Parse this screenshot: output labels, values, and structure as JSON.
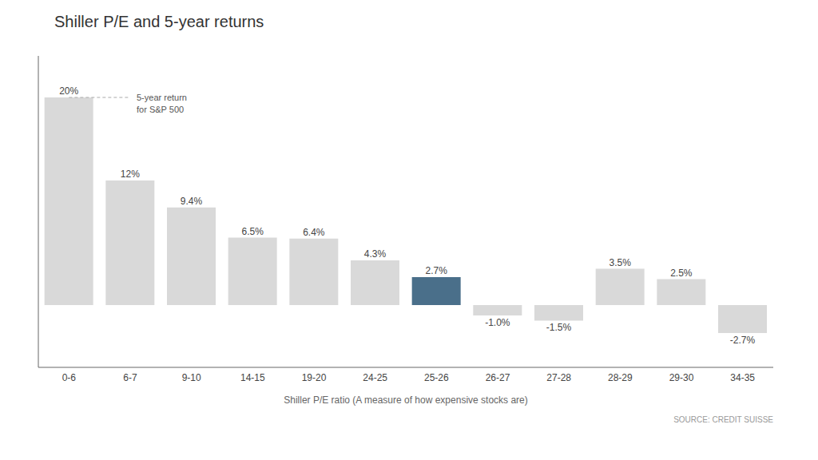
{
  "chart_data": {
    "type": "bar",
    "title": "Shiller P/E and 5-year returns",
    "categories": [
      "0-6",
      "6-7",
      "9-10",
      "14-15",
      "19-20",
      "24-25",
      "25-26",
      "26-27",
      "27-28",
      "28-29",
      "29-30",
      "34-35"
    ],
    "values": [
      20.0,
      12.0,
      9.4,
      6.5,
      6.4,
      4.3,
      2.7,
      -1.0,
      -1.5,
      3.5,
      2.5,
      -2.7
    ],
    "value_labels": [
      "20%",
      "12%",
      "9.4%",
      "6.5%",
      "6.4%",
      "4.3%",
      "2.7%",
      "-1.0%",
      "-1.5%",
      "3.5%",
      "2.5%",
      "-2.7%"
    ],
    "colors": [
      "#d9d9d9",
      "#d9d9d9",
      "#d9d9d9",
      "#d9d9d9",
      "#d9d9d9",
      "#d9d9d9",
      "#4a6f8a",
      "#d9d9d9",
      "#d9d9d9",
      "#d9d9d9",
      "#d9d9d9",
      "#d9d9d9"
    ],
    "annotation": "5-year return\nfor S&P 500",
    "xlabel": "Shiller P/E ratio (A measure of how expensive stocks are)",
    "source": "SOURCE: CREDIT SUISSE",
    "ylim": [
      -6,
      24
    ],
    "grid": false,
    "data_labels": true,
    "tick_labels": "x"
  }
}
